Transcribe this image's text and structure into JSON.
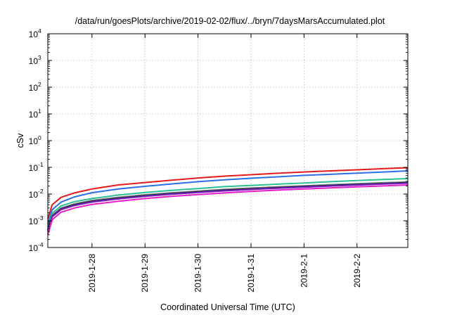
{
  "chart_data": {
    "type": "line",
    "title": "/data/run/goesPlots/archive/2019-02-02/flux/../bryn/7daysMarsAccumulated.plot",
    "xlabel": "Coordinated Universal Time (UTC)",
    "ylabel": "cSv",
    "yscale": "log",
    "ylim": [
      0.0001,
      10000
    ],
    "xlim": [
      "2019-01-27T04:00",
      "2019-02-02T23:00"
    ],
    "y_ticks": [
      {
        "base": "10",
        "exp": "-4"
      },
      {
        "base": "10",
        "exp": "-3"
      },
      {
        "base": "10",
        "exp": "-2"
      },
      {
        "base": "10",
        "exp": "-1"
      },
      {
        "base": "10",
        "exp": "0"
      },
      {
        "base": "10",
        "exp": "1"
      },
      {
        "base": "10",
        "exp": "2"
      },
      {
        "base": "10",
        "exp": "3"
      },
      {
        "base": "10",
        "exp": "4"
      }
    ],
    "x_ticks": [
      {
        "label": "2019-1-28",
        "t": "2019-01-28T00:00"
      },
      {
        "label": "2019-1-29",
        "t": "2019-01-29T00:00"
      },
      {
        "label": "2019-1-30",
        "t": "2019-01-30T00:00"
      },
      {
        "label": "2019-1-31",
        "t": "2019-01-31T00:00"
      },
      {
        "label": "2019-2-1",
        "t": "2019-02-01T00:00"
      },
      {
        "label": "2019-2-2",
        "t": "2019-02-02T00:00"
      }
    ],
    "grid": true,
    "x": [
      "2019-01-27T04:00",
      "2019-01-27T06:00",
      "2019-01-27T10:00",
      "2019-01-27T16:00",
      "2019-01-28T00:00",
      "2019-01-28T12:00",
      "2019-01-29T00:00",
      "2019-01-29T12:00",
      "2019-01-30T00:00",
      "2019-01-30T12:00",
      "2019-01-31T00:00",
      "2019-01-31T12:00",
      "2019-02-01T00:00",
      "2019-02-01T12:00",
      "2019-02-02T00:00",
      "2019-02-02T12:00",
      "2019-02-02T23:00"
    ],
    "series": [
      {
        "color": "#e41a1c",
        "values": [
          0.0012,
          0.004,
          0.0075,
          0.011,
          0.0155,
          0.022,
          0.027,
          0.033,
          0.04,
          0.047,
          0.053,
          0.06,
          0.067,
          0.074,
          0.081,
          0.089,
          0.097
        ]
      },
      {
        "color": "#2b6fe6",
        "values": [
          0.0008,
          0.0026,
          0.005,
          0.0078,
          0.0112,
          0.0155,
          0.0195,
          0.024,
          0.029,
          0.034,
          0.039,
          0.044,
          0.05,
          0.055,
          0.061,
          0.067,
          0.074
        ]
      },
      {
        "color": "#2bbf95",
        "values": [
          0.0006,
          0.0019,
          0.0036,
          0.0052,
          0.0068,
          0.0092,
          0.0115,
          0.0138,
          0.016,
          0.019,
          0.021,
          0.0235,
          0.026,
          0.029,
          0.032,
          0.035,
          0.038
        ]
      },
      {
        "color": "#808080",
        "values": [
          0.0005,
          0.0016,
          0.003,
          0.0043,
          0.0058,
          0.0076,
          0.0094,
          0.0112,
          0.013,
          0.015,
          0.0168,
          0.0188,
          0.0205,
          0.0225,
          0.0245,
          0.0265,
          0.0285
        ]
      },
      {
        "color": "#26264d",
        "values": [
          0.00045,
          0.0015,
          0.0028,
          0.004,
          0.0054,
          0.0071,
          0.0088,
          0.0105,
          0.0122,
          0.014,
          0.0158,
          0.0175,
          0.0193,
          0.0212,
          0.023,
          0.025,
          0.027
        ]
      },
      {
        "color": "#7a1fbf",
        "values": [
          0.0004,
          0.0014,
          0.0026,
          0.0037,
          0.005,
          0.0066,
          0.0082,
          0.0098,
          0.0114,
          0.0131,
          0.0148,
          0.0165,
          0.0181,
          0.0199,
          0.0217,
          0.0236,
          0.0255
        ]
      },
      {
        "color": "#e61ec8",
        "values": [
          0.0003,
          0.0011,
          0.0021,
          0.003,
          0.0041,
          0.0054,
          0.0068,
          0.0082,
          0.0096,
          0.011,
          0.0125,
          0.014,
          0.0155,
          0.017,
          0.0186,
          0.0202,
          0.0218
        ]
      }
    ]
  }
}
